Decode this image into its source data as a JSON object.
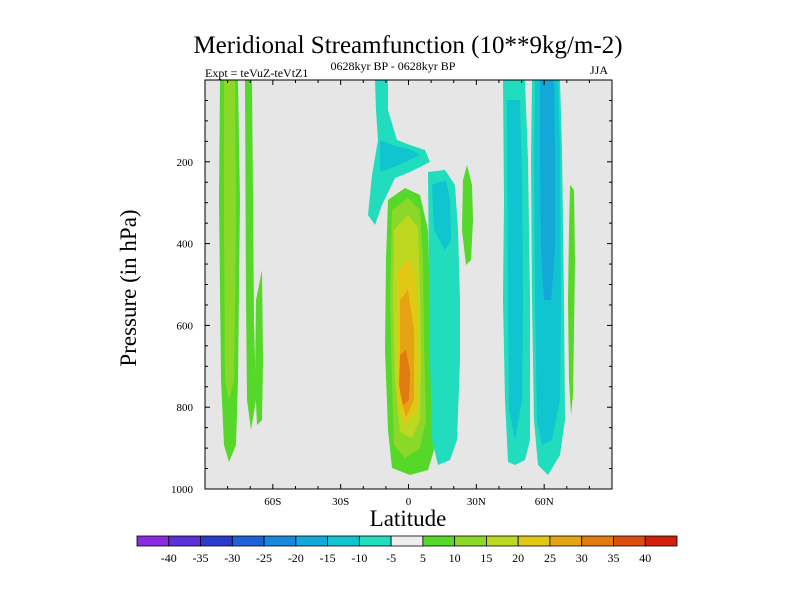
{
  "chart_data": {
    "type": "heatmap",
    "title": "Meridional Streamfunction (10**9kg/m-2)",
    "subtitle_left": "Expt = teVuZ-teVtZ1",
    "subtitle_center": "0628kyr BP - 0628kyr BP",
    "subtitle_right": "JJA",
    "xlabel": "Latitude",
    "ylabel": "Pressure (in hPa)",
    "xlim": [
      -90,
      90
    ],
    "ylim": [
      1000,
      0
    ],
    "xticks": [
      -60,
      -30,
      0,
      30,
      60
    ],
    "xtick_labels": [
      "60S",
      "30S",
      "0",
      "30N",
      "60N"
    ],
    "yticks": [
      200,
      400,
      600,
      800,
      1000
    ],
    "ytick_labels": [
      "200",
      "400",
      "600",
      "800",
      "1000"
    ],
    "background_color": "#e6e6e6",
    "colorbar": {
      "labels": [
        "-40",
        "-35",
        "-30",
        "-25",
        "-20",
        "-15",
        "-10",
        "-5",
        "5",
        "10",
        "15",
        "20",
        "25",
        "30",
        "35",
        "40"
      ],
      "colors": [
        "#8a2be2",
        "#5a30d8",
        "#2a3acc",
        "#1e62d8",
        "#1888dc",
        "#12a8d8",
        "#10c4d0",
        "#22dcbe",
        "#eeeeee",
        "#55d82a",
        "#8cd828",
        "#bcd820",
        "#e0c814",
        "#e6a414",
        "#e27a12",
        "#dc4e10",
        "#d2200c"
      ]
    }
  }
}
